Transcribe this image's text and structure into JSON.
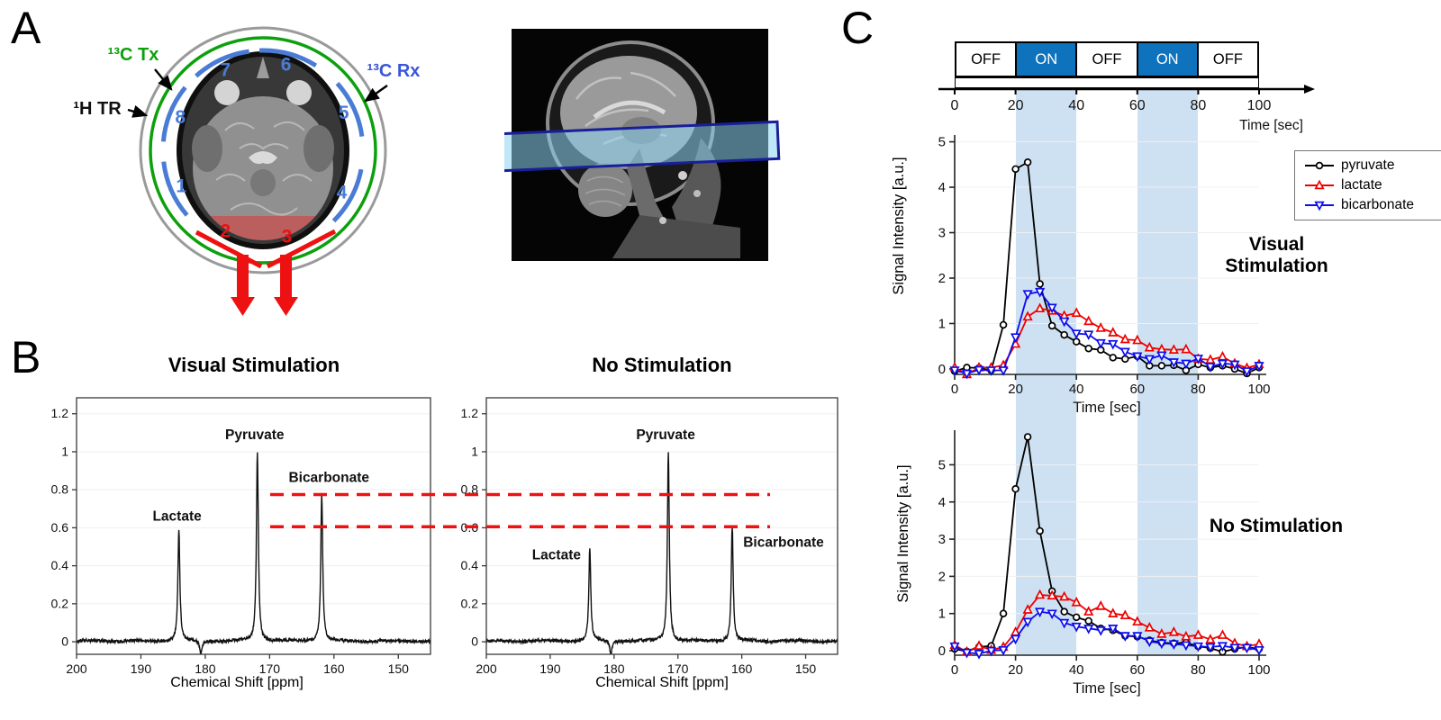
{
  "panels": {
    "a": "A",
    "b": "B",
    "c": "C"
  },
  "panel_a": {
    "labels": {
      "tx": "¹³C Tx",
      "tr": "¹H TR",
      "rx": "¹³C Rx"
    },
    "coil_numbers": [
      "1",
      "2",
      "3",
      "4",
      "5",
      "6",
      "7",
      "8"
    ],
    "red_numbers": [
      "2",
      "3"
    ],
    "colors": {
      "tx_green": "#0CA00C",
      "rx_blue": "#4A7CD6",
      "rx_label_blue": "#3A57D8",
      "tr_gray": "#9A9A9A",
      "highlight_red": "#EE1111",
      "slab_fill": "rgba(139,211,241,0.55)",
      "slab_border": "#1A1F99"
    }
  },
  "panel_b": {
    "xlabel": "Chemical Shift [ppm]",
    "comparison_dashes": {
      "color": "#EE1111",
      "upper": 0.775,
      "lower": 0.605
    }
  },
  "panel_c": {
    "paradigm": {
      "blocks": [
        {
          "label": "OFF",
          "state": "off"
        },
        {
          "label": "ON",
          "state": "on"
        },
        {
          "label": "OFF",
          "state": "off"
        },
        {
          "label": "ON",
          "state": "on"
        },
        {
          "label": "OFF",
          "state": "off"
        }
      ],
      "tick_labels": [
        "0",
        "20",
        "40",
        "60",
        "80",
        "100"
      ],
      "time_label": "Time [sec]",
      "on_color": "#0E72BD",
      "band_color": "#CEE1F2"
    },
    "legend": {
      "items": [
        {
          "label": "pyruvate",
          "color": "#000000",
          "marker": "circle"
        },
        {
          "label": "lactate",
          "color": "#EE0000",
          "marker": "triangle-up"
        },
        {
          "label": "bicarbonate",
          "color": "#0D0DEE",
          "marker": "triangle-down"
        }
      ]
    },
    "annotations": {
      "visual": "Visual Stimulation",
      "none": "No Stimulation"
    }
  },
  "chart_data": [
    {
      "type": "line",
      "panel": "B-left",
      "title": "Visual Stimulation",
      "xlabel": "Chemical Shift [ppm]",
      "ylabel": "",
      "xlim": [
        200,
        145
      ],
      "x_reversed": true,
      "ylim": [
        -0.066,
        1.284
      ],
      "xticks": [
        200,
        190,
        180,
        170,
        160,
        150
      ],
      "yticks": [
        0,
        0.2,
        0.4,
        0.6,
        0.8,
        1,
        1.2
      ],
      "grid": "faint-horizontal",
      "peaks": [
        {
          "label": "Lactate",
          "ppm": 184.1,
          "height": 0.59
        },
        {
          "label": "Pyruvate",
          "ppm": 171.9,
          "height": 1.0
        },
        {
          "label": "Bicarbonate",
          "ppm": 161.9,
          "height": 0.775
        }
      ],
      "artifact_ppm": 180.7
    },
    {
      "type": "line",
      "panel": "B-right",
      "title": "No Stimulation",
      "xlabel": "Chemical Shift [ppm]",
      "ylabel": "",
      "xlim": [
        200,
        145
      ],
      "x_reversed": true,
      "ylim": [
        -0.066,
        1.284
      ],
      "xticks": [
        200,
        190,
        180,
        170,
        160,
        150
      ],
      "yticks": [
        0,
        0.2,
        0.4,
        0.6,
        0.8,
        1,
        1.2
      ],
      "grid": "faint-horizontal",
      "peaks": [
        {
          "label": "Lactate",
          "ppm": 183.8,
          "height": 0.49
        },
        {
          "label": "Pyruvate",
          "ppm": 171.5,
          "height": 1.0
        },
        {
          "label": "Bicarbonate",
          "ppm": 161.5,
          "height": 0.605
        }
      ],
      "artifact_ppm": 180.5
    },
    {
      "type": "line",
      "panel": "C-top",
      "annotation": "Visual Stimulation",
      "xlabel": "Time [sec]",
      "ylabel": "Signal Intensity [a.u.]",
      "xlim": [
        0,
        100
      ],
      "ylim": [
        -0.12,
        5.15
      ],
      "xticks": [
        0,
        20,
        40,
        60,
        80,
        100
      ],
      "yticks": [
        0,
        1,
        2,
        3,
        4,
        5
      ],
      "grid": "faint-horizontal",
      "legend_position": "upper-right",
      "stim_on_intervals": [
        [
          20,
          40
        ],
        [
          60,
          80
        ]
      ],
      "x": [
        0,
        4,
        8,
        12,
        16,
        20,
        24,
        28,
        32,
        36,
        40,
        44,
        48,
        52,
        56,
        60,
        64,
        68,
        72,
        76,
        80,
        84,
        88,
        92,
        96,
        100
      ],
      "series": [
        {
          "name": "pyruvate",
          "color": "#000000",
          "marker": "circle",
          "values": [
            -0.05,
            0.03,
            0.02,
            -0.03,
            0.97,
            4.4,
            4.55,
            1.87,
            0.95,
            0.75,
            0.6,
            0.45,
            0.42,
            0.25,
            0.22,
            0.28,
            0.07,
            0.07,
            0.08,
            -0.03,
            0.1,
            0.03,
            0.07,
            0.0,
            -0.1,
            0.03
          ]
        },
        {
          "name": "lactate",
          "color": "#EE0000",
          "marker": "triangle-up",
          "values": [
            0.03,
            -0.12,
            0.03,
            0.03,
            0.08,
            0.55,
            1.15,
            1.33,
            1.28,
            1.17,
            1.23,
            1.05,
            0.9,
            0.8,
            0.65,
            0.63,
            0.47,
            0.43,
            0.42,
            0.43,
            0.22,
            0.2,
            0.27,
            0.12,
            0.02,
            0.1
          ]
        },
        {
          "name": "bicarbonate",
          "color": "#0D0DEE",
          "marker": "triangle-down",
          "values": [
            -0.03,
            -0.1,
            -0.02,
            -0.03,
            -0.03,
            0.7,
            1.65,
            1.7,
            1.35,
            1.05,
            0.78,
            0.76,
            0.57,
            0.55,
            0.38,
            0.28,
            0.22,
            0.3,
            0.15,
            0.12,
            0.23,
            0.05,
            0.12,
            0.1,
            -0.05,
            0.07
          ]
        }
      ]
    },
    {
      "type": "line",
      "panel": "C-bottom",
      "annotation": "No Stimulation",
      "xlabel": "Time [sec]",
      "ylabel": "Signal Intensity [a.u.]",
      "xlim": [
        0,
        100
      ],
      "ylim": [
        -0.12,
        5.93
      ],
      "xticks": [
        0,
        20,
        40,
        60,
        80,
        100
      ],
      "yticks": [
        0,
        1,
        2,
        3,
        4,
        5
      ],
      "grid": "faint-horizontal",
      "stim_on_intervals": [
        [
          20,
          40
        ],
        [
          60,
          80
        ]
      ],
      "x": [
        0,
        4,
        8,
        12,
        16,
        20,
        24,
        28,
        32,
        36,
        40,
        44,
        48,
        52,
        56,
        60,
        64,
        68,
        72,
        76,
        80,
        84,
        88,
        92,
        96,
        100
      ],
      "series": [
        {
          "name": "pyruvate",
          "color": "#000000",
          "marker": "circle",
          "values": [
            0.05,
            -0.02,
            0.1,
            0.13,
            1.0,
            4.35,
            5.75,
            3.22,
            1.6,
            1.05,
            0.9,
            0.8,
            0.6,
            0.55,
            0.4,
            0.38,
            0.28,
            0.22,
            0.2,
            0.22,
            0.12,
            0.07,
            -0.03,
            0.05,
            0.1,
            0.05
          ]
        },
        {
          "name": "lactate",
          "color": "#EE0000",
          "marker": "triangle-up",
          "values": [
            0.15,
            -0.03,
            0.13,
            0.02,
            0.1,
            0.5,
            1.1,
            1.5,
            1.48,
            1.45,
            1.3,
            1.05,
            1.2,
            1.0,
            0.95,
            0.78,
            0.62,
            0.45,
            0.5,
            0.38,
            0.42,
            0.3,
            0.42,
            0.2,
            0.12,
            0.18
          ]
        },
        {
          "name": "bicarbonate",
          "color": "#0D0DEE",
          "marker": "triangle-down",
          "values": [
            0.12,
            -0.05,
            -0.08,
            0.0,
            0.02,
            0.32,
            0.78,
            1.05,
            1.0,
            0.75,
            0.65,
            0.6,
            0.55,
            0.6,
            0.4,
            0.4,
            0.25,
            0.2,
            0.18,
            0.15,
            0.12,
            0.1,
            0.13,
            0.08,
            0.08,
            0.02
          ]
        }
      ]
    }
  ]
}
